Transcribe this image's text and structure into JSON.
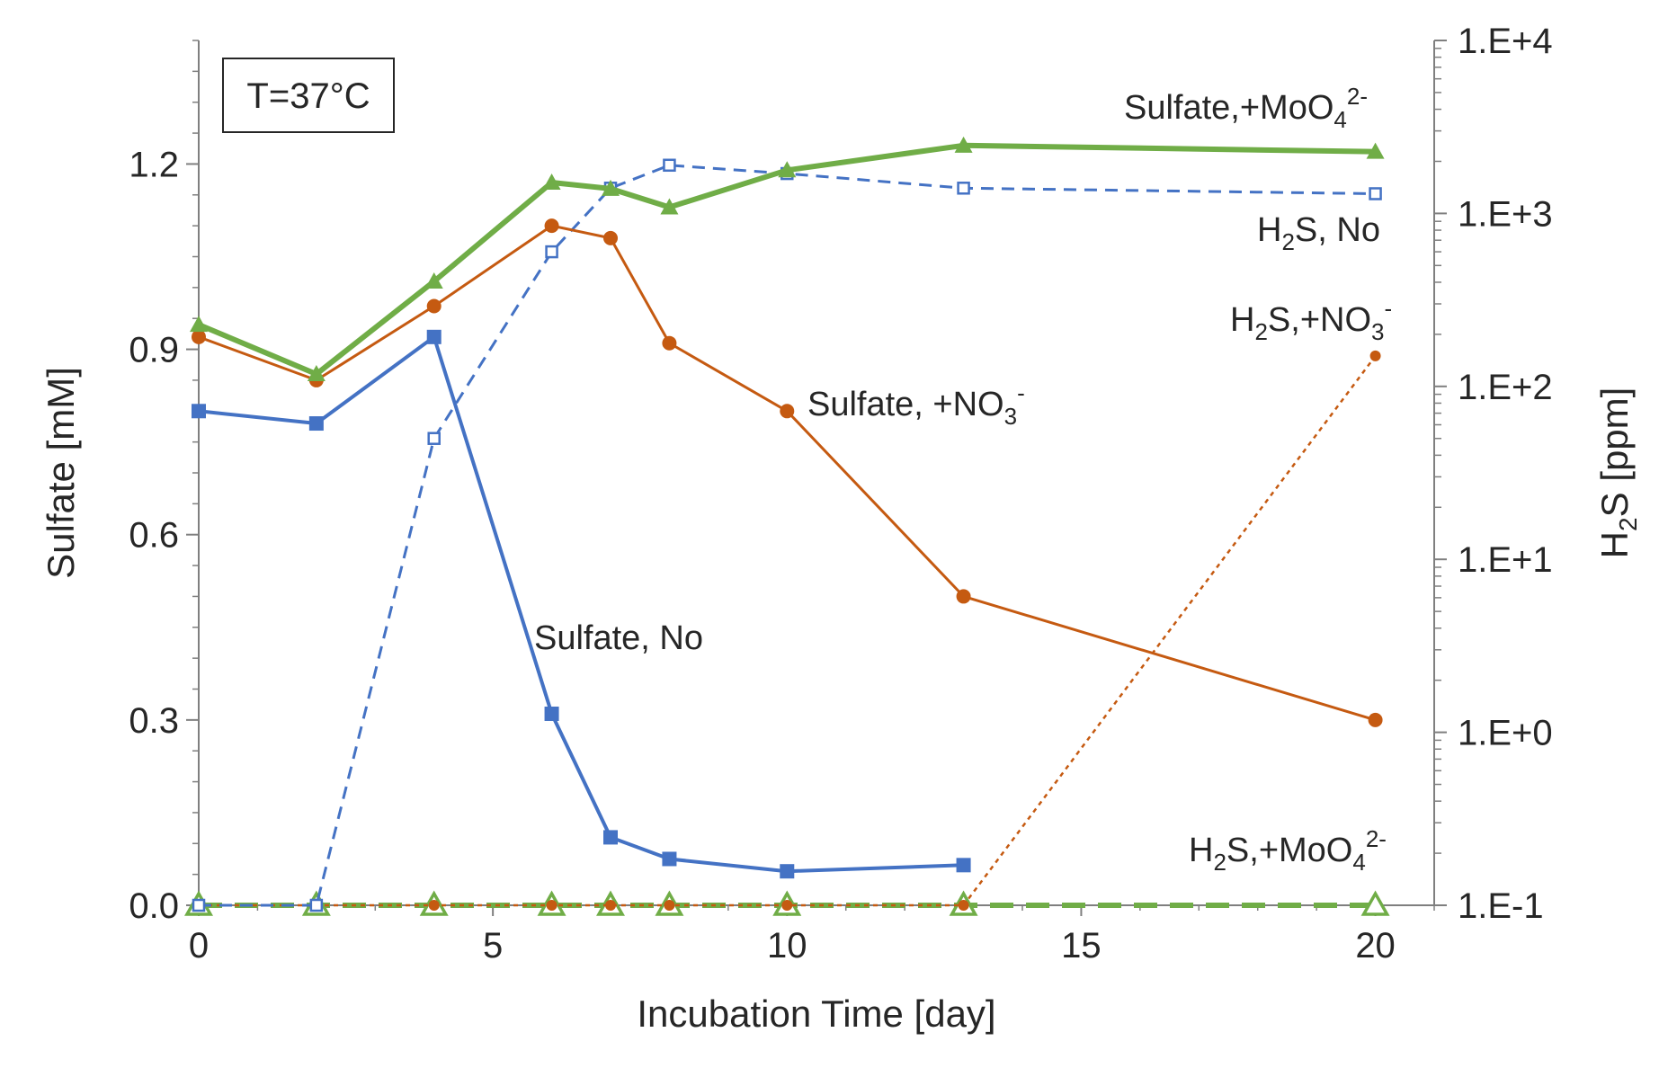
{
  "chart_data": {
    "type": "line",
    "title": "",
    "xlabel": "Incubation Time [day]",
    "ylabel": "Sulfate [mM]",
    "y2label_main": "H",
    "y2label_sub": "2",
    "y2label_tail": "S [ppm]",
    "xlim": [
      0,
      21
    ],
    "ylim": [
      0,
      1.4
    ],
    "y2lim_log10": [
      -1,
      4
    ],
    "x_ticks": [
      0,
      5,
      10,
      15,
      20
    ],
    "x_tick_labels": [
      "0",
      "5",
      "10",
      "15",
      "20"
    ],
    "y_ticks": [
      0,
      0.3,
      0.6,
      0.9,
      1.2
    ],
    "y_tick_labels": [
      "0.0",
      "0.3",
      "0.6",
      "0.9",
      "1.2"
    ],
    "y2_ticks_log10": [
      -1,
      0,
      1,
      2,
      3,
      4
    ],
    "y2_tick_labels": [
      "1.E-1",
      "1.E+0",
      "1.E+1",
      "1.E+2",
      "1.E+3",
      "1.E+4"
    ],
    "temperature_label": "T=37°C",
    "colors": {
      "blue": "#4472C4",
      "orange": "#C55A11",
      "green": "#70AD47"
    },
    "series": [
      {
        "name": "Sulfate, No",
        "axis": "left",
        "color": "#4472C4",
        "marker": "square",
        "dash": "solid",
        "x": [
          0,
          2,
          4,
          6,
          7,
          8,
          10,
          13
        ],
        "y": [
          0.8,
          0.78,
          0.92,
          0.31,
          0.11,
          0.075,
          0.055,
          0.065
        ]
      },
      {
        "name": "Sulfate, +NO3-",
        "axis": "left",
        "color": "#C55A11",
        "marker": "circle",
        "dash": "solid",
        "x": [
          0,
          2,
          4,
          6,
          7,
          8,
          10,
          13,
          20
        ],
        "y": [
          0.92,
          0.85,
          0.97,
          1.1,
          1.08,
          0.91,
          0.8,
          0.5,
          0.3
        ]
      },
      {
        "name": "Sulfate, +MoO4 2-",
        "axis": "left",
        "color": "#70AD47",
        "marker": "triangle",
        "dash": "solid",
        "x": [
          0,
          2,
          4,
          6,
          7,
          8,
          10,
          13,
          20
        ],
        "y": [
          0.94,
          0.86,
          1.01,
          1.17,
          1.16,
          1.13,
          1.19,
          1.23,
          1.22
        ]
      },
      {
        "name": "H2S, No",
        "axis": "right",
        "color": "#4472C4",
        "marker": "square-open",
        "dash": "dashed",
        "x": [
          0,
          2,
          4,
          6,
          7,
          8,
          10,
          13,
          20
        ],
        "y": [
          0.1,
          0.1,
          50,
          600,
          1400,
          1900,
          1700,
          1400,
          1300
        ]
      },
      {
        "name": "H2S, +NO3-",
        "axis": "right",
        "color": "#C55A11",
        "marker": "circle-small",
        "dash": "dotted",
        "x": [
          0,
          2,
          4,
          6,
          7,
          8,
          10,
          13,
          20
        ],
        "y": [
          0.1,
          0.1,
          0.1,
          0.1,
          0.1,
          0.1,
          0.1,
          0.1,
          150
        ]
      },
      {
        "name": "H2S, +MoO4 2-",
        "axis": "right",
        "color": "#70AD47",
        "marker": "triangle-open",
        "dash": "longdash",
        "x": [
          0,
          2,
          4,
          6,
          7,
          8,
          10,
          13,
          20
        ],
        "y": [
          0.1,
          0.1,
          0.1,
          0.1,
          0.1,
          0.1,
          0.1,
          0.1,
          0.1
        ]
      }
    ],
    "annotations": [
      {
        "id": "sulfate-mo",
        "main": "Sulfate,+MoO",
        "sub": "4",
        "sup": "2-",
        "tail": ""
      },
      {
        "id": "h2s-no",
        "main": "H",
        "sub": "2",
        "sup": "",
        "tail": "S, No"
      },
      {
        "id": "h2s-no3",
        "main": "H",
        "sub": "2",
        "sup": "",
        "tail": "S,+NO",
        "sub2": "3",
        "sup2": "-"
      },
      {
        "id": "sulfate-no3",
        "main": "Sulfate, +NO",
        "sub": "3",
        "sup": "-",
        "tail": ""
      },
      {
        "id": "sulfate-no",
        "main": "Sulfate, No",
        "sub": "",
        "sup": "",
        "tail": ""
      },
      {
        "id": "h2s-mo",
        "main": "H",
        "sub": "2",
        "sup": "",
        "tail": "S,+MoO",
        "sub2": "4",
        "sup2": "2-"
      }
    ]
  }
}
